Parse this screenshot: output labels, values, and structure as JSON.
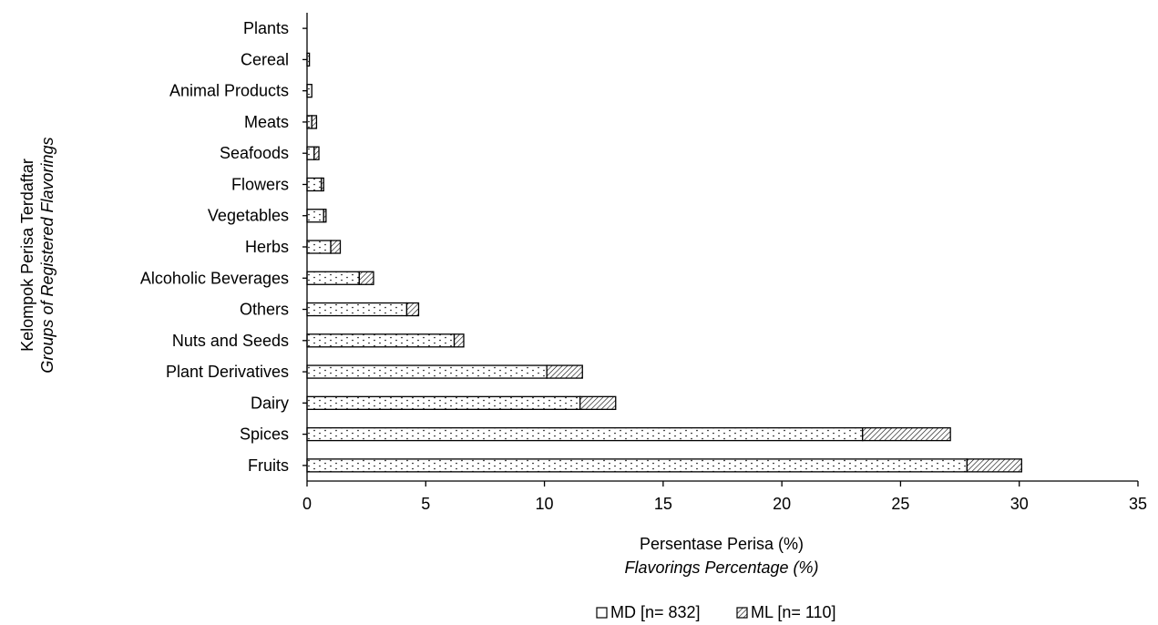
{
  "chart_data": {
    "type": "bar",
    "orientation": "horizontal",
    "stacked": true,
    "categories": [
      "Plants",
      "Cereal",
      "Animal Products",
      "Meats",
      "Seafoods",
      "Flowers",
      "Vegetables",
      "Herbs",
      "Alcoholic Beverages",
      "Others",
      "Nuts and Seeds",
      "Plant Derivatives",
      "Dairy",
      "Spices",
      "Fruits"
    ],
    "series": [
      {
        "name": "MD [n= 832]",
        "pattern": "dots",
        "values": [
          0,
          0.1,
          0.2,
          0.2,
          0.3,
          0.6,
          0.7,
          1.0,
          2.2,
          4.2,
          6.2,
          10.1,
          11.5,
          23.4,
          27.8
        ]
      },
      {
        "name": "ML [n= 110]",
        "pattern": "hatch",
        "values": [
          0,
          0,
          0,
          0.2,
          0.2,
          0.1,
          0.1,
          0.4,
          0.6,
          0.5,
          0.4,
          1.5,
          1.5,
          3.7,
          2.3
        ]
      }
    ],
    "xlim": [
      0,
      35
    ],
    "xticks": [
      "0",
      "5",
      "10",
      "15",
      "20",
      "25",
      "30",
      "35"
    ],
    "xlabel": "Persentase Perisa (%)",
    "xlabel_en": "Flavorings Percentage (%)",
    "ylabel": "Kelompok Perisa Terdaftar",
    "ylabel_en": "Groups of Registered Flavorings",
    "legend_position": "bottom",
    "grid": false
  }
}
